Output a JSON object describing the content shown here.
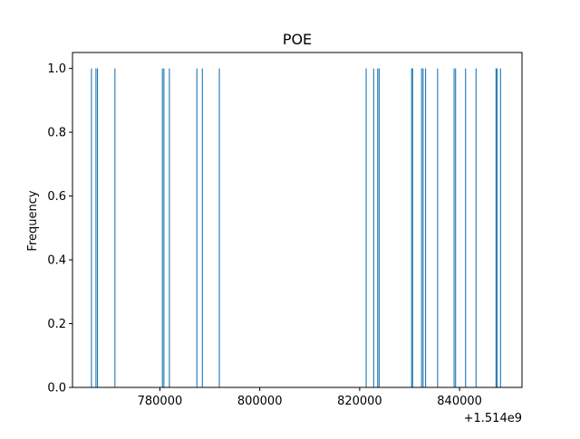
{
  "chart_data": {
    "type": "bar",
    "title": "POE",
    "xlabel": "",
    "ylabel": "Frequency",
    "x_offset_label": "+1.514e9",
    "xlim": [
      1514762500,
      1514852500
    ],
    "ylim": [
      0,
      1.05
    ],
    "x_ticks": [
      {
        "value": 1514780000,
        "label": "780000"
      },
      {
        "value": 1514800000,
        "label": "800000"
      },
      {
        "value": 1514820000,
        "label": "820000"
      },
      {
        "value": 1514840000,
        "label": "840000"
      }
    ],
    "y_ticks": [
      {
        "value": 0.0,
        "label": "0.0"
      },
      {
        "value": 0.2,
        "label": "0.2"
      },
      {
        "value": 0.4,
        "label": "0.4"
      },
      {
        "value": 0.6,
        "label": "0.6"
      },
      {
        "value": 0.8,
        "label": "0.8"
      },
      {
        "value": 1.0,
        "label": "1.0"
      }
    ],
    "grid": false,
    "bar_color": "#1f77b4",
    "bar_width": 200,
    "series": [
      {
        "x": [
          1514766300,
          1514767200,
          1514767500,
          1514771000,
          1514780500,
          1514780800,
          1514781900,
          1514787400,
          1514788500,
          1514791900,
          1514821300,
          1514822800,
          1514823600,
          1514823900,
          1514830400,
          1514830600,
          1514832400,
          1514832700,
          1514833200,
          1514835600,
          1514838900,
          1514839200,
          1514841200,
          1514843300,
          1514847300,
          1514847500,
          1514848200
        ],
        "values": [
          1,
          1,
          1,
          1,
          1,
          1,
          1,
          1,
          1,
          1,
          1,
          1,
          1,
          1,
          1,
          1,
          1,
          1,
          1,
          1,
          1,
          1,
          1,
          1,
          1,
          1,
          1
        ]
      }
    ]
  }
}
